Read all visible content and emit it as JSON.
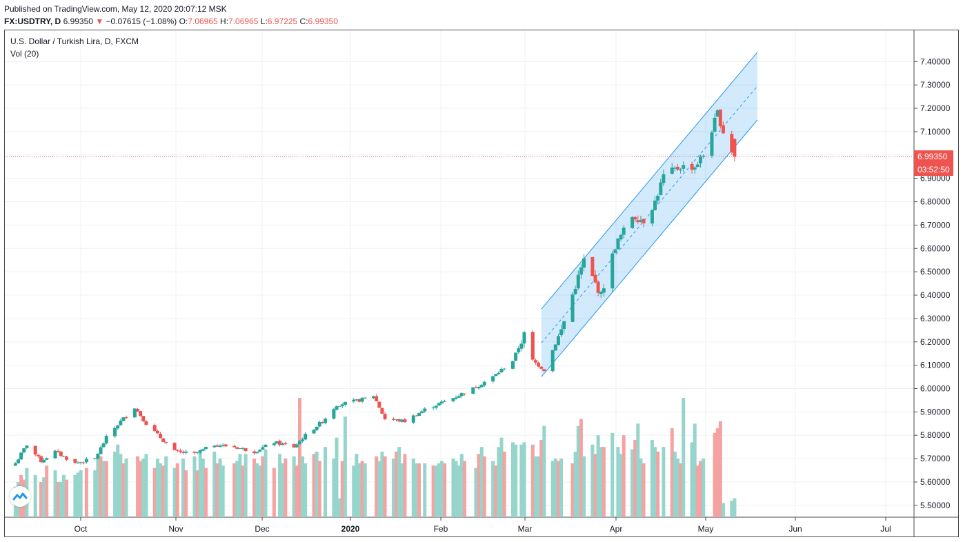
{
  "header": {
    "published": "Published on TradingView.com, May 12, 2020 20:07:12 MSK",
    "symbol": "FX:USDTRY, D",
    "last": "6.99350",
    "change_arrow": "▼",
    "change": "−0.07615 (−1.08%)",
    "o_label": "O:",
    "o": "7.06965",
    "h_label": "H:",
    "h": "7.06965",
    "l_label": "L:",
    "l": "6.97225",
    "c_label": "C:",
    "c": "6.99350"
  },
  "legend": {
    "title": "U.S. Dollar / Turkish Lira, D, FXCM",
    "volume": "Vol (20)"
  },
  "price_tag": {
    "value": "6.99350",
    "countdown": "03:52:50"
  },
  "logo_icon": "tradingview-logo-icon",
  "colors": {
    "up": "#26a69a",
    "down": "#ef5350",
    "up_vol": "#95d5cb",
    "down_vol": "#f4a3a2",
    "channel": "#2196f3",
    "grid": "#eef0f3"
  },
  "chart_data": {
    "type": "candlestick",
    "ylim": [
      5.47,
      7.46
    ],
    "y_ticks": [
      "7.40000",
      "7.30000",
      "7.20000",
      "7.10000",
      "7.00000",
      "6.90000",
      "6.80000",
      "6.70000",
      "6.60000",
      "6.50000",
      "6.40000",
      "6.30000",
      "6.20000",
      "6.10000",
      "6.00000",
      "5.90000",
      "5.80000",
      "5.70000",
      "5.60000",
      "5.50000"
    ],
    "x_labels": [
      "Oct",
      "Nov",
      "Dec",
      "2020",
      "Feb",
      "Mar",
      "Apr",
      "May",
      "Jun",
      "Jul"
    ],
    "last_price": 6.9935,
    "series": [
      {
        "name": "U.S. Dollar / Turkish Lira",
        "type": "ohlc",
        "anchors": [
          [
            "2019-09-02",
            5.68
          ],
          [
            "2019-09-06",
            5.76
          ],
          [
            "2019-09-11",
            5.69
          ],
          [
            "2019-09-16",
            5.73
          ],
          [
            "2019-09-23",
            5.68
          ],
          [
            "2019-09-30",
            5.7
          ],
          [
            "2019-10-04",
            5.79
          ],
          [
            "2019-10-09",
            5.86
          ],
          [
            "2019-10-14",
            5.92
          ],
          [
            "2019-10-18",
            5.85
          ],
          [
            "2019-10-23",
            5.79
          ],
          [
            "2019-10-28",
            5.73
          ],
          [
            "2019-11-04",
            5.72
          ],
          [
            "2019-11-11",
            5.76
          ],
          [
            "2019-11-18",
            5.75
          ],
          [
            "2019-11-25",
            5.73
          ],
          [
            "2019-12-02",
            5.77
          ],
          [
            "2019-12-09",
            5.75
          ],
          [
            "2019-12-13",
            5.8
          ],
          [
            "2019-12-19",
            5.86
          ],
          [
            "2019-12-24",
            5.93
          ],
          [
            "2020-01-01",
            5.95
          ],
          [
            "2020-01-06",
            5.97
          ],
          [
            "2020-01-10",
            5.87
          ],
          [
            "2020-01-17",
            5.86
          ],
          [
            "2020-01-24",
            5.91
          ],
          [
            "2020-02-03",
            5.96
          ],
          [
            "2020-02-10",
            6.0
          ],
          [
            "2020-02-17",
            6.05
          ],
          [
            "2020-02-24",
            6.12
          ],
          [
            "2020-02-28",
            6.23
          ],
          [
            "2020-03-02",
            6.12
          ],
          [
            "2020-03-06",
            6.08
          ],
          [
            "2020-03-12",
            6.25
          ],
          [
            "2020-03-17",
            6.44
          ],
          [
            "2020-03-20",
            6.55
          ],
          [
            "2020-03-26",
            6.4
          ],
          [
            "2020-03-31",
            6.61
          ],
          [
            "2020-04-06",
            6.74
          ],
          [
            "2020-04-10",
            6.72
          ],
          [
            "2020-04-14",
            6.8
          ],
          [
            "2020-04-17",
            6.91
          ],
          [
            "2020-04-23",
            6.95
          ],
          [
            "2020-04-28",
            6.95
          ],
          [
            "2020-05-01",
            7.0
          ],
          [
            "2020-05-06",
            7.18
          ],
          [
            "2020-05-08",
            7.1
          ],
          [
            "2020-05-12",
            6.99
          ]
        ]
      },
      {
        "name": "Vol (20)",
        "type": "volume",
        "values": [
          5.58,
          5.6,
          5.63,
          5.61,
          5.66,
          5.63,
          5.6,
          5.62,
          5.67,
          5.65,
          5.6,
          5.6,
          5.63,
          5.61,
          5.63,
          5.64,
          5.65,
          5.66,
          5.65,
          5.72,
          5.71,
          5.69,
          5.69,
          5.73,
          5.76,
          5.72,
          5.68,
          5.7,
          5.71,
          5.69,
          5.7,
          5.72,
          5.66,
          5.7,
          5.68,
          5.67,
          5.71,
          5.66,
          5.68,
          5.7,
          5.65,
          5.71,
          5.65,
          5.73,
          5.7,
          5.66,
          5.73,
          5.68,
          5.7,
          5.67,
          5.68,
          5.69,
          5.72,
          5.67,
          5.72,
          5.7,
          5.68,
          5.67,
          5.71,
          5.74,
          5.66,
          5.72,
          5.68,
          5.7,
          5.71,
          5.67,
          5.96,
          5.71,
          5.68,
          5.72,
          5.73,
          5.69,
          5.75,
          5.7,
          5.79,
          5.53,
          5.69,
          5.88,
          5.67,
          5.72,
          5.68,
          5.69,
          5.68,
          5.71,
          5.69,
          5.73,
          5.71,
          5.7,
          5.73,
          5.75,
          5.68,
          5.72,
          5.7,
          5.68,
          5.68,
          5.68,
          5.67,
          5.67,
          5.68,
          5.69,
          5.68,
          5.7,
          5.69,
          5.67,
          5.72,
          5.69,
          5.66,
          5.72,
          5.75,
          5.71,
          5.69,
          5.67,
          5.75,
          5.79,
          5.73,
          5.77,
          5.76,
          5.76,
          5.77,
          5.76,
          5.71,
          5.71,
          5.78,
          5.84,
          5.69,
          5.7,
          5.69,
          5.7,
          5.68,
          5.73,
          5.84,
          5.87,
          5.71,
          5.76,
          5.72,
          5.8,
          5.75,
          5.75,
          5.81,
          5.75,
          5.72,
          5.8,
          5.74,
          5.78,
          5.85,
          5.7,
          5.68,
          5.78,
          5.75,
          5.73,
          5.75,
          5.83,
          5.73,
          5.7,
          5.68,
          5.96,
          5.77,
          5.85,
          5.67,
          5.69,
          5.7,
          5.81,
          5.83,
          5.86,
          5.51,
          5.52,
          5.53
        ],
        "down": [
          0,
          0,
          1,
          1,
          0,
          0,
          1,
          0,
          1,
          0,
          1,
          0,
          0,
          1,
          0,
          0,
          0,
          1,
          0,
          0,
          1,
          0,
          1,
          0,
          0,
          0,
          1,
          0,
          1,
          1,
          0,
          0,
          1,
          0,
          0,
          1,
          0,
          0,
          1,
          0,
          1,
          0,
          1,
          0,
          0,
          1,
          0,
          1,
          0,
          0,
          1,
          0,
          0,
          1,
          0,
          1,
          0,
          0,
          1,
          0,
          1,
          0,
          0,
          1,
          0,
          1,
          1,
          0,
          0,
          1,
          0,
          1,
          0,
          0,
          0,
          0,
          1,
          0,
          0,
          0,
          0,
          1,
          0,
          1,
          0,
          0,
          1,
          0,
          1,
          0,
          0,
          1,
          0,
          0,
          1,
          0,
          1,
          0,
          0,
          0,
          1,
          0,
          0,
          0,
          0,
          1,
          0,
          1,
          0,
          1,
          0,
          1,
          0,
          0,
          1,
          0,
          0,
          0,
          0,
          1,
          0,
          0,
          1,
          0,
          0,
          0,
          1,
          0,
          1,
          0,
          0,
          1,
          0,
          0,
          1,
          0,
          0,
          1,
          0,
          0,
          0,
          1,
          0,
          1,
          0,
          0,
          1,
          0,
          0,
          1,
          0,
          1,
          0,
          0,
          1,
          0,
          0,
          0,
          1,
          1,
          0,
          1,
          1,
          1
        ]
      }
    ],
    "channel": {
      "start": [
        "2020-03-05",
        6.05
      ],
      "end": [
        "2020-05-20",
        7.15
      ],
      "width": 0.29
    },
    "x_domain": [
      "2019-08-30",
      "2020-05-21"
    ]
  }
}
